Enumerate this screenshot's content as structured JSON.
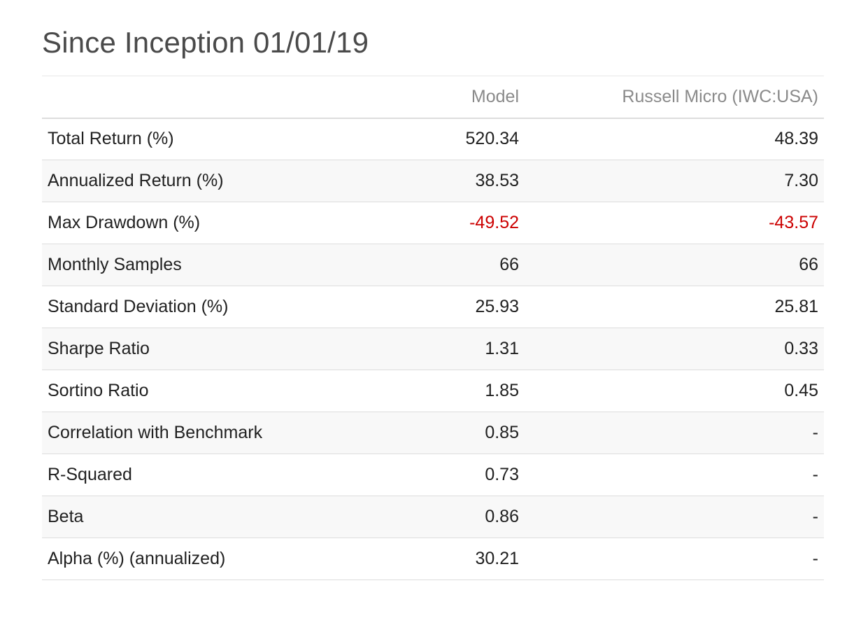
{
  "title": "Since Inception 01/01/19",
  "columns": [
    "",
    "Model",
    "Russell Micro (IWC:USA)"
  ],
  "negative_color": "#cc0000",
  "rows": [
    {
      "label": "Total Return (%)",
      "model": "520.34",
      "benchmark": "48.39",
      "negative": false
    },
    {
      "label": "Annualized Return (%)",
      "model": "38.53",
      "benchmark": "7.30",
      "negative": false
    },
    {
      "label": "Max Drawdown (%)",
      "model": "-49.52",
      "benchmark": "-43.57",
      "negative": true
    },
    {
      "label": "Monthly Samples",
      "model": "66",
      "benchmark": "66",
      "negative": false
    },
    {
      "label": "Standard Deviation (%)",
      "model": "25.93",
      "benchmark": "25.81",
      "negative": false
    },
    {
      "label": "Sharpe Ratio",
      "model": "1.31",
      "benchmark": "0.33",
      "negative": false
    },
    {
      "label": "Sortino Ratio",
      "model": "1.85",
      "benchmark": "0.45",
      "negative": false
    },
    {
      "label": "Correlation with Benchmark",
      "model": "0.85",
      "benchmark": "-",
      "negative": false
    },
    {
      "label": "R-Squared",
      "model": "0.73",
      "benchmark": "-",
      "negative": false
    },
    {
      "label": "Beta",
      "model": "0.86",
      "benchmark": "-",
      "negative": false
    },
    {
      "label": "Alpha (%) (annualized)",
      "model": "30.21",
      "benchmark": "-",
      "negative": false
    }
  ]
}
